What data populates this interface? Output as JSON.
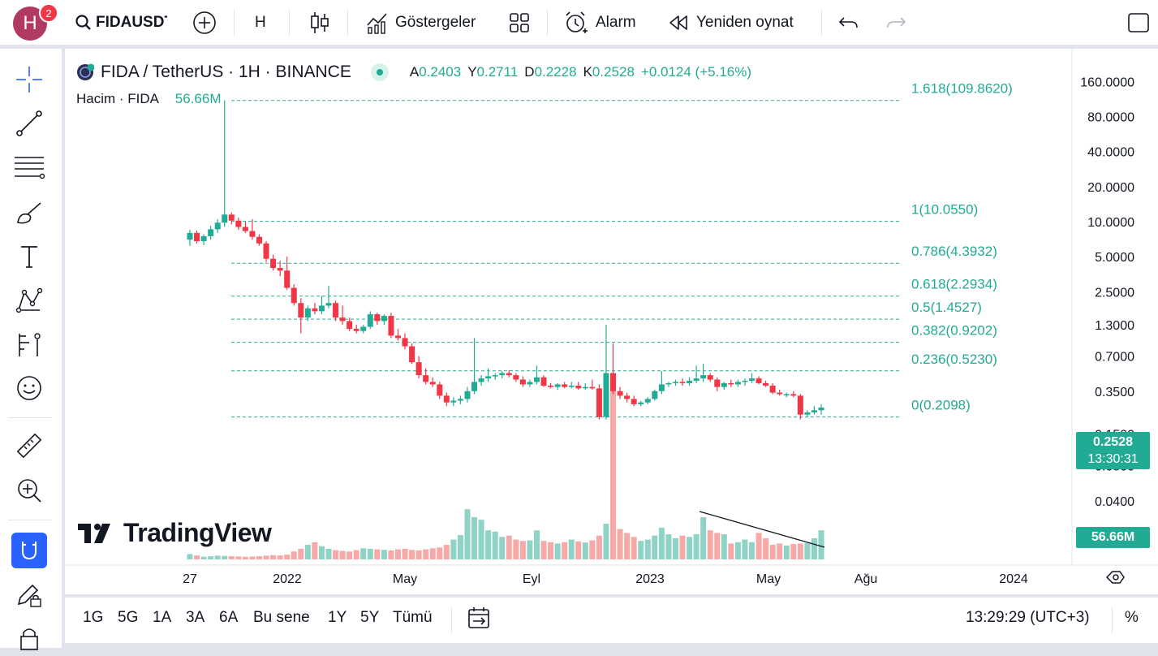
{
  "avatar": {
    "letter": "H",
    "badge": "2"
  },
  "toolbar": {
    "symbol": "FIDAUSDT",
    "interval": "H",
    "indicators": "Göstergeler",
    "alarm": "Alarm",
    "replay": "Yeniden oynat"
  },
  "legend": {
    "title": "FIDA / TetherUS · 1H · BINANCE",
    "open_label": "A",
    "open": "0.2403",
    "high_label": "Y",
    "high": "0.2711",
    "low_label": "D",
    "low": "0.2228",
    "close_label": "K",
    "close": "0.2528",
    "change": "+0.0124 (+5.16%)",
    "volume_label": "Hacim · FIDA",
    "volume": "56.66M"
  },
  "price_badge": {
    "price": "0.2528",
    "countdown": "13:30:31"
  },
  "volume_badge": "56.66M",
  "watermark": "TradingView",
  "bottom": {
    "ranges": [
      "1G",
      "5G",
      "1A",
      "3A",
      "6A",
      "Bu sene",
      "1Y",
      "5Y",
      "Tümü"
    ],
    "clock": "13:29:29 (UTC+3)",
    "percent": "%"
  },
  "colors": {
    "up": "#22ab94",
    "down": "#f23645",
    "fib": "#22ab94",
    "accent": "#2962ff"
  },
  "chart_data": {
    "type": "candlestick",
    "scale": "log",
    "y_ticks": [
      "160.0000",
      "80.0000",
      "40.0000",
      "20.0000",
      "10.0000",
      "5.0000",
      "2.5000",
      "1.3000",
      "0.7000",
      "0.3500",
      "0.1500",
      "0.0800",
      "0.0400"
    ],
    "x_ticks": [
      "27",
      "2022",
      "May",
      "Eyl",
      "2023",
      "May",
      "Ağu",
      "2024"
    ],
    "fib_levels": [
      {
        "label": "1.618(109.8620)",
        "price": 109.862
      },
      {
        "label": "1(10.0550)",
        "price": 10.055
      },
      {
        "label": "0.786(4.3932)",
        "price": 4.3932
      },
      {
        "label": "0.618(2.2934)",
        "price": 2.2934
      },
      {
        "label": "0.5(1.4527)",
        "price": 1.4527
      },
      {
        "label": "0.382(0.9202)",
        "price": 0.9202
      },
      {
        "label": "0.236(0.5230)",
        "price": 0.523
      },
      {
        "label": "0(0.2098)",
        "price": 0.2098
      }
    ],
    "candles": [
      [
        7.0,
        8.5,
        6.2,
        8.0
      ],
      [
        8.0,
        8.4,
        6.5,
        6.8
      ],
      [
        6.8,
        7.8,
        6.3,
        7.5
      ],
      [
        7.5,
        9.2,
        7.0,
        8.6
      ],
      [
        8.6,
        10.5,
        8.0,
        9.8
      ],
      [
        9.8,
        110,
        9.0,
        11.5
      ],
      [
        11.5,
        12.0,
        9.5,
        10.2
      ],
      [
        10.2,
        10.8,
        8.5,
        9.0
      ],
      [
        9.0,
        10.0,
        8.0,
        8.3
      ],
      [
        8.3,
        10.5,
        7.0,
        7.4
      ],
      [
        7.4,
        7.8,
        6.2,
        6.5
      ],
      [
        6.5,
        6.8,
        4.5,
        4.8
      ],
      [
        4.8,
        5.2,
        3.8,
        4.0
      ],
      [
        4.0,
        4.6,
        3.4,
        3.8
      ],
      [
        3.8,
        5.0,
        2.6,
        2.7
      ],
      [
        2.7,
        2.9,
        1.9,
        2.0
      ],
      [
        2.0,
        2.2,
        1.1,
        1.5
      ],
      [
        1.5,
        1.9,
        1.4,
        1.8
      ],
      [
        1.8,
        2.0,
        1.6,
        1.7
      ],
      [
        1.7,
        2.3,
        1.6,
        1.9
      ],
      [
        1.9,
        2.8,
        1.8,
        2.0
      ],
      [
        2.0,
        2.1,
        1.4,
        1.5
      ],
      [
        1.5,
        1.9,
        1.3,
        1.4
      ],
      [
        1.4,
        1.5,
        1.15,
        1.2
      ],
      [
        1.2,
        1.3,
        1.1,
        1.15
      ],
      [
        1.15,
        1.3,
        1.1,
        1.25
      ],
      [
        1.25,
        1.7,
        1.2,
        1.6
      ],
      [
        1.6,
        1.65,
        1.3,
        1.4
      ],
      [
        1.4,
        1.6,
        1.3,
        1.55
      ],
      [
        1.55,
        1.65,
        1.0,
        1.05
      ],
      [
        1.05,
        1.2,
        0.95,
        1.0
      ],
      [
        1.0,
        1.1,
        0.8,
        0.85
      ],
      [
        0.85,
        0.9,
        0.6,
        0.62
      ],
      [
        0.62,
        0.7,
        0.45,
        0.48
      ],
      [
        0.48,
        0.55,
        0.4,
        0.42
      ],
      [
        0.42,
        0.46,
        0.38,
        0.4
      ],
      [
        0.4,
        0.42,
        0.3,
        0.32
      ],
      [
        0.32,
        0.34,
        0.26,
        0.28
      ],
      [
        0.28,
        0.31,
        0.26,
        0.29
      ],
      [
        0.29,
        0.32,
        0.27,
        0.3
      ],
      [
        0.3,
        0.38,
        0.28,
        0.35
      ],
      [
        0.35,
        1.0,
        0.33,
        0.42
      ],
      [
        0.42,
        0.48,
        0.39,
        0.45
      ],
      [
        0.45,
        0.55,
        0.42,
        0.47
      ],
      [
        0.47,
        0.5,
        0.44,
        0.48
      ],
      [
        0.48,
        0.52,
        0.45,
        0.5
      ],
      [
        0.5,
        0.53,
        0.46,
        0.48
      ],
      [
        0.48,
        0.5,
        0.42,
        0.44
      ],
      [
        0.44,
        0.47,
        0.38,
        0.4
      ],
      [
        0.4,
        0.44,
        0.38,
        0.42
      ],
      [
        0.42,
        0.58,
        0.4,
        0.46
      ],
      [
        0.46,
        0.48,
        0.38,
        0.39
      ],
      [
        0.39,
        0.41,
        0.37,
        0.38
      ],
      [
        0.38,
        0.41,
        0.36,
        0.4
      ],
      [
        0.4,
        0.42,
        0.37,
        0.38
      ],
      [
        0.38,
        0.42,
        0.37,
        0.39
      ],
      [
        0.39,
        0.42,
        0.36,
        0.37
      ],
      [
        0.37,
        0.41,
        0.36,
        0.38
      ],
      [
        0.38,
        0.44,
        0.36,
        0.37
      ],
      [
        0.37,
        0.4,
        0.2,
        0.21
      ],
      [
        0.21,
        1.3,
        0.2,
        0.5
      ],
      [
        0.5,
        0.9,
        0.33,
        0.35
      ],
      [
        0.35,
        0.38,
        0.3,
        0.32
      ],
      [
        0.32,
        0.34,
        0.28,
        0.3
      ],
      [
        0.3,
        0.32,
        0.26,
        0.27
      ],
      [
        0.27,
        0.29,
        0.26,
        0.28
      ],
      [
        0.28,
        0.31,
        0.27,
        0.3
      ],
      [
        0.3,
        0.36,
        0.29,
        0.35
      ],
      [
        0.35,
        0.52,
        0.33,
        0.4
      ],
      [
        0.4,
        0.42,
        0.38,
        0.41
      ],
      [
        0.41,
        0.44,
        0.39,
        0.42
      ],
      [
        0.42,
        0.45,
        0.39,
        0.41
      ],
      [
        0.41,
        0.46,
        0.39,
        0.43
      ],
      [
        0.43,
        0.58,
        0.41,
        0.45
      ],
      [
        0.45,
        0.6,
        0.42,
        0.48
      ],
      [
        0.48,
        0.5,
        0.42,
        0.44
      ],
      [
        0.44,
        0.46,
        0.35,
        0.38
      ],
      [
        0.38,
        0.42,
        0.36,
        0.41
      ],
      [
        0.41,
        0.44,
        0.38,
        0.4
      ],
      [
        0.4,
        0.44,
        0.38,
        0.42
      ],
      [
        0.42,
        0.45,
        0.39,
        0.43
      ],
      [
        0.43,
        0.5,
        0.41,
        0.45
      ],
      [
        0.45,
        0.47,
        0.4,
        0.41
      ],
      [
        0.41,
        0.43,
        0.38,
        0.39
      ],
      [
        0.39,
        0.41,
        0.33,
        0.34
      ],
      [
        0.34,
        0.36,
        0.32,
        0.33
      ],
      [
        0.33,
        0.34,
        0.31,
        0.33
      ],
      [
        0.33,
        0.35,
        0.31,
        0.32
      ],
      [
        0.32,
        0.33,
        0.2,
        0.22
      ],
      [
        0.22,
        0.24,
        0.21,
        0.23
      ],
      [
        0.23,
        0.26,
        0.22,
        0.24
      ],
      [
        0.24,
        0.27,
        0.22,
        0.253
      ]
    ],
    "volume": [
      20,
      15,
      10,
      12,
      14,
      13,
      12,
      11,
      10,
      11,
      12,
      14,
      16,
      15,
      18,
      30,
      40,
      55,
      65,
      50,
      40,
      35,
      32,
      30,
      35,
      42,
      40,
      38,
      36,
      34,
      38,
      40,
      36,
      34,
      38,
      42,
      45,
      55,
      75,
      92,
      190,
      160,
      150,
      110,
      105,
      85,
      90,
      75,
      70,
      72,
      110,
      70,
      65,
      60,
      65,
      75,
      68,
      64,
      72,
      90,
      135,
      215,
      115,
      100,
      85,
      70,
      75,
      90,
      120,
      95,
      80,
      90,
      85,
      95,
      160,
      110,
      100,
      95,
      60,
      65,
      75,
      65,
      100,
      80,
      55,
      60,
      52,
      58,
      60,
      62,
      80,
      110
    ]
  }
}
